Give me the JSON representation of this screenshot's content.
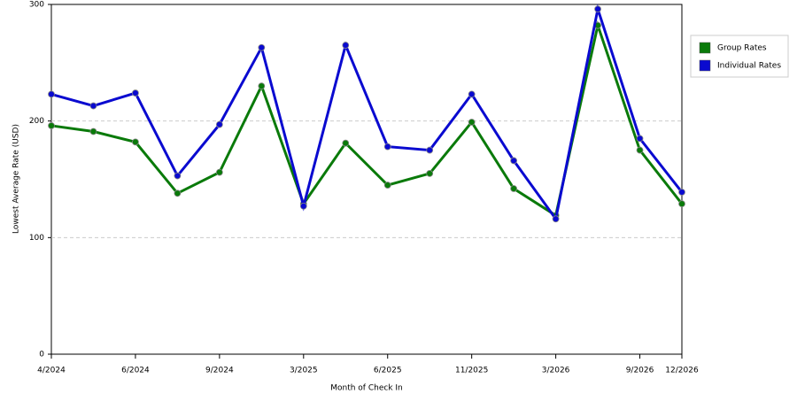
{
  "chart_data": {
    "type": "line",
    "x_label": "Month of Check In",
    "y_label": "Lowest Average Rate (USD)",
    "categories": [
      "4/2024",
      null,
      "6/2024",
      null,
      "9/2024",
      null,
      "3/2025",
      null,
      "6/2025",
      null,
      "11/2025",
      null,
      "3/2026",
      null,
      "9/2026",
      "12/2026"
    ],
    "series": [
      {
        "name": "Group Rates",
        "color": "#0a7a0a",
        "values": [
          196,
          191,
          182,
          138,
          156,
          230,
          129,
          181,
          145,
          155,
          199,
          142,
          119,
          282,
          175,
          129
        ]
      },
      {
        "name": "Individual Rates",
        "color": "#0a0ad0",
        "values": [
          223,
          213,
          224,
          153,
          197,
          263,
          127,
          265,
          178,
          175,
          223,
          166,
          116,
          296,
          185,
          139
        ]
      }
    ],
    "ylim": [
      0,
      300
    ],
    "yticks": [
      0,
      100,
      200,
      300
    ],
    "grid": true,
    "legend": "right"
  }
}
